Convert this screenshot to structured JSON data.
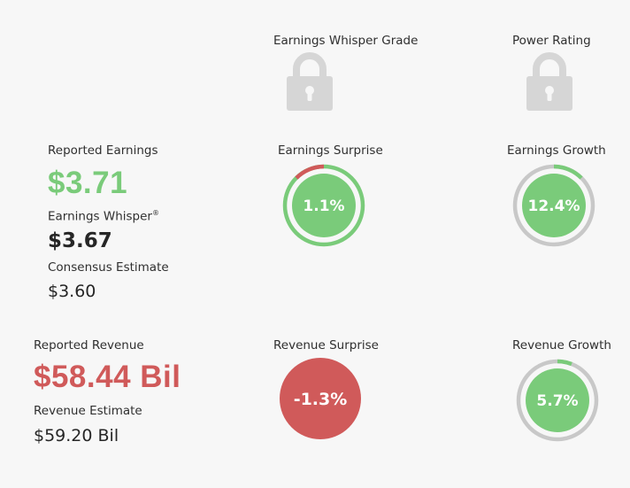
{
  "grades": {
    "whisper_grade_label": "Earnings Whisper Grade",
    "power_rating_label": "Power Rating",
    "lock_icon": "lock-icon"
  },
  "earnings": {
    "reported_label": "Reported Earnings",
    "reported_value": "$3.71",
    "whisper_label": "Earnings Whisper",
    "whisper_mark": "®",
    "whisper_value": "$3.67",
    "consensus_label": "Consensus Estimate",
    "consensus_value": "$3.60",
    "surprise_label": "Earnings Surprise",
    "surprise_value": "1.1%",
    "surprise_pct": 1.1,
    "growth_label": "Earnings Growth",
    "growth_value": "12.4%",
    "growth_pct": 12.4
  },
  "revenue": {
    "reported_label": "Reported Revenue",
    "reported_value": "$58.44 Bil",
    "estimate_label": "Revenue Estimate",
    "estimate_value": "$59.20 Bil",
    "surprise_label": "Revenue Surprise",
    "surprise_value": "-1.3%",
    "surprise_pct": -1.3,
    "growth_label": "Revenue Growth",
    "growth_value": "5.7%",
    "growth_pct": 5.7
  },
  "colors": {
    "green": "#7acb7a",
    "red": "#d05a5a",
    "gray_ring": "#c8c8c8",
    "lock": "#d6d6d6"
  }
}
